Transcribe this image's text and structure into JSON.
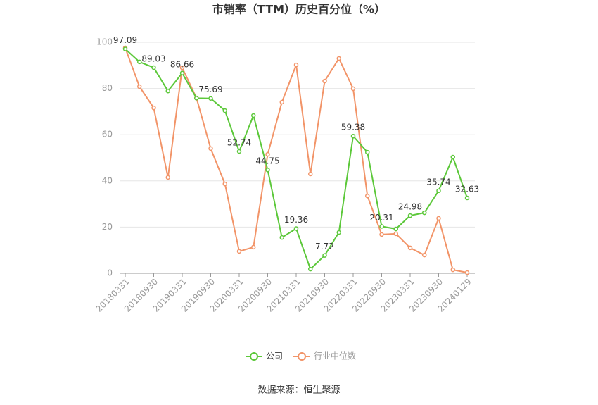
{
  "chart_data": {
    "type": "line",
    "title": "市销率（TTM）历史百分位（%）",
    "categories": [
      "20180331",
      null,
      "20180930",
      null,
      "20190331",
      null,
      "20190930",
      null,
      "20200331",
      null,
      "20200930",
      null,
      "20210331",
      null,
      "20210930",
      null,
      "20220331",
      null,
      "20220930",
      null,
      "20230331",
      null,
      "20230930",
      null,
      "20240129"
    ],
    "series": [
      {
        "name": "公司",
        "color": "#5cc83a",
        "values": [
          97.09,
          91.5,
          89.03,
          78.9,
          86.66,
          75.8,
          75.69,
          70.4,
          52.74,
          68.3,
          44.75,
          15.5,
          19.36,
          1.8,
          7.72,
          17.7,
          59.38,
          52.4,
          20.31,
          19.2,
          24.98,
          26.2,
          35.74,
          50.3,
          32.63
        ]
      },
      {
        "name": "行业中位数",
        "color": "#f29468",
        "values": [
          97.6,
          80.8,
          71.6,
          41.5,
          89.0,
          75.9,
          54.0,
          38.7,
          9.5,
          11.3,
          51.5,
          74.1,
          90.2,
          43.0,
          83.2,
          93.0,
          79.9,
          33.5,
          16.8,
          17.1,
          11.0,
          7.9,
          23.8,
          1.5,
          0.3
        ]
      }
    ],
    "ylim": [
      0,
      100
    ],
    "yticks": [
      0,
      20,
      40,
      60,
      80,
      100
    ],
    "grid": true,
    "source": "数据来源：恒生聚源"
  }
}
